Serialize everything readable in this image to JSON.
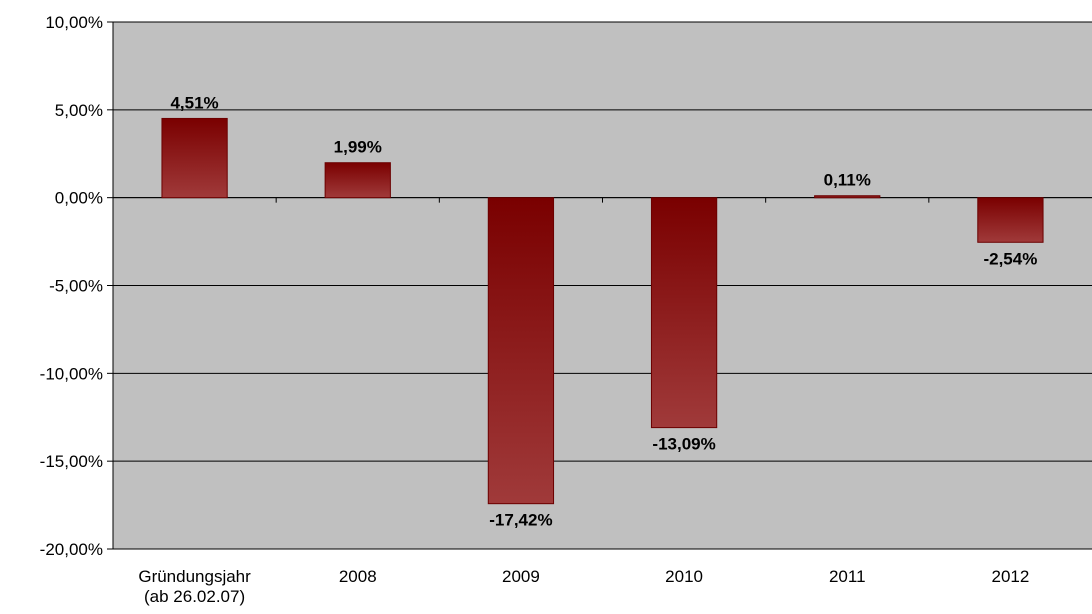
{
  "chart_data": {
    "type": "bar",
    "categories": [
      [
        "Gründungsjahr",
        "(ab 26.02.07)"
      ],
      [
        "2008"
      ],
      [
        "2009"
      ],
      [
        "2010"
      ],
      [
        "2011"
      ],
      [
        "2012"
      ]
    ],
    "values": [
      4.51,
      1.99,
      -17.42,
      -13.09,
      0.11,
      -2.54
    ],
    "data_labels": [
      "4,51%",
      "1,99%",
      "-17,42%",
      "-13,09%",
      "0,11%",
      "-2,54%"
    ],
    "ylim": [
      -20,
      10
    ],
    "yticks": [
      10,
      5,
      0,
      -5,
      -10,
      -15,
      -20
    ],
    "ytick_labels": [
      "10,00%",
      "5,00%",
      "0,00%",
      "-5,00%",
      "-10,00%",
      "-15,00%",
      "-20,00%"
    ],
    "grid": true,
    "legend": false,
    "colors": {
      "plot_background": "#c0c0c0",
      "bar_dark": "#7a0000",
      "bar_light": "#a03a3a",
      "bar_border": "#6b0000",
      "gridline": "#000000"
    }
  }
}
